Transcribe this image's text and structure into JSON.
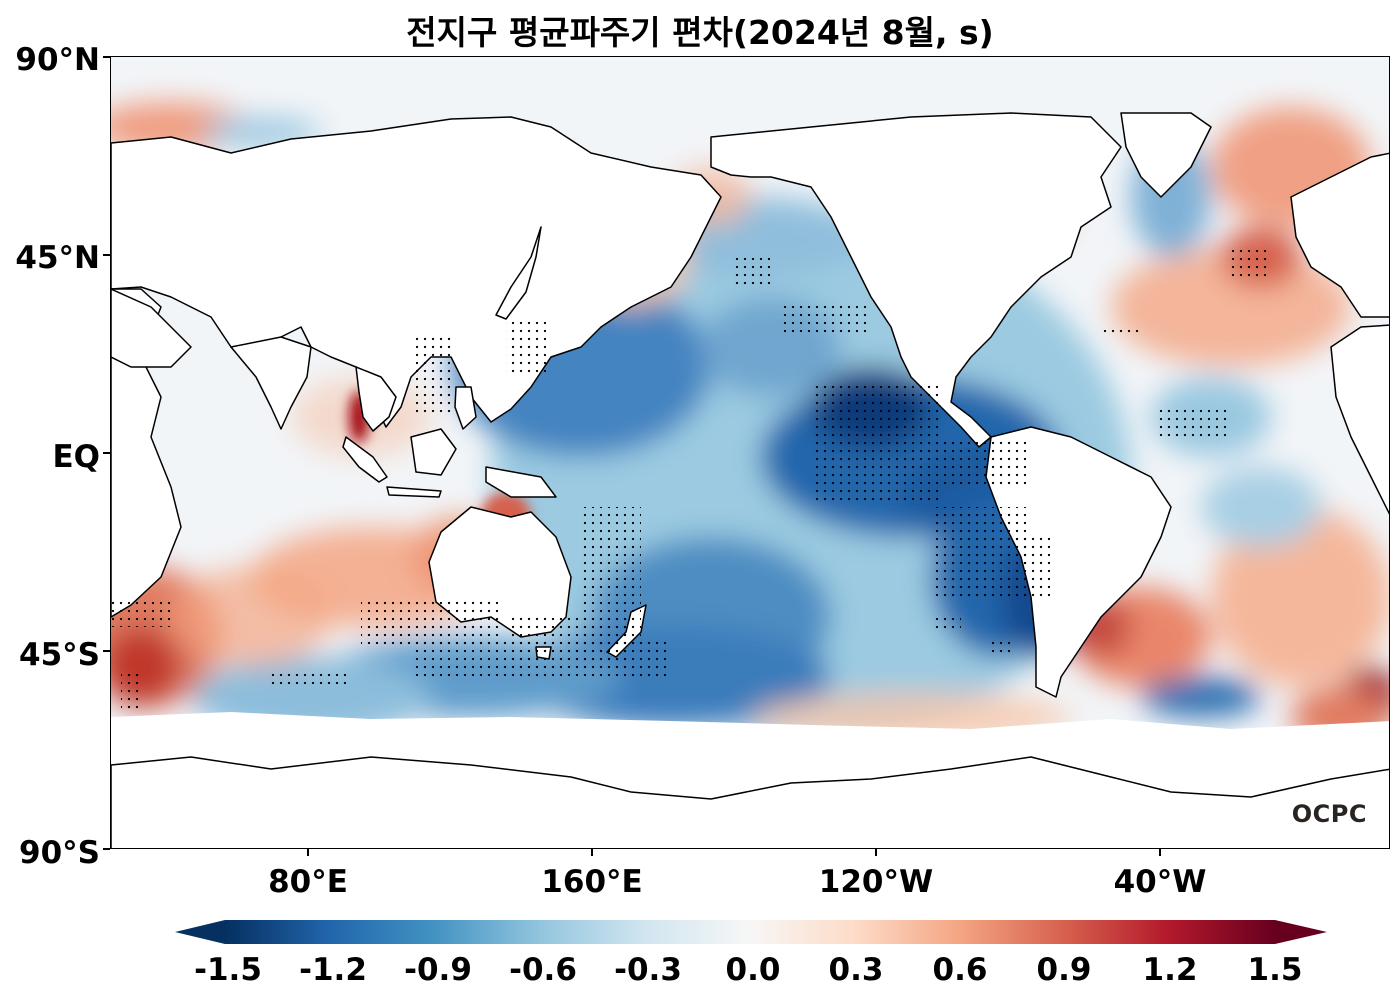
{
  "title": "전지구 평균파주기 편차(2024년 8월, s)",
  "map": {
    "projection": "PlateCarree, 0-360 centered on 180",
    "y_axis_labels": [
      "90°N",
      "45°N",
      "EQ",
      "45°S",
      "90°S"
    ],
    "x_axis_labels": [
      "80°E",
      "160°E",
      "120°W",
      "40°W"
    ],
    "stippling": "significance dots over strong anomalies",
    "watermark": "OCPC"
  },
  "colorbar": {
    "colormap": "RdBu_r",
    "min": -1.5,
    "max": 1.5,
    "extend": "both",
    "tick_labels": [
      "-1.5",
      "-1.2",
      "-0.9",
      "-0.6",
      "-0.3",
      "0.0",
      "0.3",
      "0.6",
      "0.9",
      "1.2",
      "1.5"
    ]
  },
  "colors": {
    "strong_negative": "#08306b",
    "negative": "#2166ac",
    "weak_negative": "#92c5de",
    "neutral": "#f7f7f7",
    "weak_positive": "#f4a582",
    "positive": "#d6604d",
    "strong_positive": "#67001f",
    "land": "#ffffff",
    "coast": "#000000"
  }
}
